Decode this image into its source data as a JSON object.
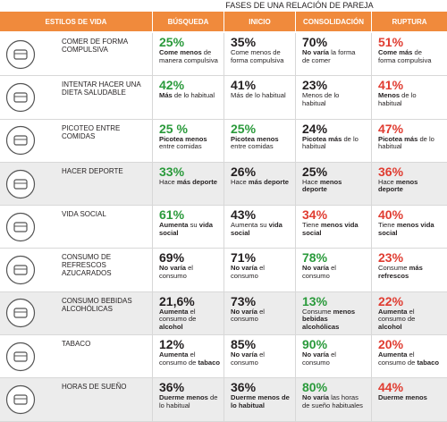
{
  "title": "FASES DE UNA RELACIÓN DE PAREJA",
  "table": {
    "header": [
      "ESTILOS DE VIDA",
      "BÚSQUEDA",
      "INICIO",
      "CONSOLIDACIÓN",
      "RUPTURA"
    ],
    "rows": [
      {
        "label": "COMER DE FORMA COMPULSIVA",
        "cells": [
          {
            "value": "25%",
            "color": "#2a9a3b",
            "note": [
              {
                "text": "Come menos",
                "bold": true
              },
              {
                "text": " de manera compulsiva"
              }
            ]
          },
          {
            "value": "35%",
            "color": "#231f20",
            "note": [
              {
                "text": "Come menos de forma compulsiva"
              }
            ]
          },
          {
            "value": "70%",
            "color": "#231f20",
            "note": [
              {
                "text": "No varía",
                "bold": true
              },
              {
                "text": " la forma de comer"
              }
            ]
          },
          {
            "value": "51%",
            "color": "#e03c31",
            "note": [
              {
                "text": "Come más",
                "bold": true
              },
              {
                "text": " de forma compulsiva"
              }
            ]
          }
        ]
      },
      {
        "label": "INTENTAR HACER UNA DIETA SALUDABLE",
        "cells": [
          {
            "value": "42%",
            "color": "#2a9a3b",
            "note": [
              {
                "text": "Más",
                "bold": true
              },
              {
                "text": " de lo habitual"
              }
            ]
          },
          {
            "value": "41%",
            "color": "#231f20",
            "note": [
              {
                "text": "Más de lo habitual"
              }
            ]
          },
          {
            "value": "23%",
            "color": "#231f20",
            "note": [
              {
                "text": "Menos de lo habitual"
              }
            ]
          },
          {
            "value": "41%",
            "color": "#e03c31",
            "note": [
              {
                "text": "Menos",
                "bold": true
              },
              {
                "text": " de lo habitual"
              }
            ]
          }
        ]
      },
      {
        "label": "PICOTEO ENTRE COMIDAS",
        "cells": [
          {
            "value": "25 %",
            "color": "#2a9a3b",
            "note": [
              {
                "text": "Picotea menos",
                "bold": true
              },
              {
                "text": " entre comidas"
              }
            ]
          },
          {
            "value": "25%",
            "color": "#2a9a3b",
            "note": [
              {
                "text": "Picotea menos",
                "bold": true
              },
              {
                "text": " entre comidas"
              }
            ]
          },
          {
            "value": "24%",
            "color": "#231f20",
            "note": [
              {
                "text": "Picotea más",
                "bold": true
              },
              {
                "text": " de lo habitual"
              }
            ]
          },
          {
            "value": "47%",
            "color": "#e03c31",
            "note": [
              {
                "text": "Picotea más",
                "bold": true
              },
              {
                "text": " de lo habitual"
              }
            ]
          }
        ]
      },
      {
        "label": "HACER DEPORTE",
        "cells": [
          {
            "value": "33%",
            "color": "#2a9a3b",
            "note": [
              {
                "text": "Hace "
              },
              {
                "text": "más deporte",
                "bold": true
              }
            ]
          },
          {
            "value": "26%",
            "color": "#231f20",
            "note": [
              {
                "text": "Hace "
              },
              {
                "text": "más deporte",
                "bold": true
              }
            ]
          },
          {
            "value": "25%",
            "color": "#231f20",
            "note": [
              {
                "text": "Hace "
              },
              {
                "text": "menos deporte",
                "bold": true
              }
            ]
          },
          {
            "value": "36%",
            "color": "#e03c31",
            "note": [
              {
                "text": "Hace "
              },
              {
                "text": "menos deporte",
                "bold": true
              }
            ]
          }
        ]
      },
      {
        "label": "VIDA SOCIAL",
        "cells": [
          {
            "value": "61%",
            "color": "#2a9a3b",
            "note": [
              {
                "text": "Aumenta",
                "bold": true
              },
              {
                "text": " su "
              },
              {
                "text": "vida social",
                "bold": true
              }
            ]
          },
          {
            "value": "43%",
            "color": "#231f20",
            "note": [
              {
                "text": "Aumenta su "
              },
              {
                "text": "vida social",
                "bold": true
              }
            ]
          },
          {
            "value": "34%",
            "color": "#e03c31",
            "note": [
              {
                "text": "Tiene "
              },
              {
                "text": "menos vida social",
                "bold": true
              }
            ]
          },
          {
            "value": "40%",
            "color": "#e03c31",
            "note": [
              {
                "text": "Tiene "
              },
              {
                "text": "menos vida social",
                "bold": true
              }
            ]
          }
        ]
      },
      {
        "label": "CONSUMO DE REFRESCOS AZUCARADOS",
        "cells": [
          {
            "value": "69%",
            "color": "#231f20",
            "note": [
              {
                "text": "No varía",
                "bold": true
              },
              {
                "text": " el consumo"
              }
            ]
          },
          {
            "value": "71%",
            "color": "#231f20",
            "note": [
              {
                "text": "No varía",
                "bold": true
              },
              {
                "text": " el consumo"
              }
            ]
          },
          {
            "value": "78%",
            "color": "#2a9a3b",
            "note": [
              {
                "text": "No varía",
                "bold": true
              },
              {
                "text": " el consumo"
              }
            ]
          },
          {
            "value": "23%",
            "color": "#e03c31",
            "note": [
              {
                "text": "Consume "
              },
              {
                "text": "más refrescos",
                "bold": true
              }
            ]
          }
        ]
      },
      {
        "label": "CONSUMO BEBIDAS ALCOHÓLICAS",
        "cells": [
          {
            "value": "21,6%",
            "color": "#231f20",
            "note": [
              {
                "text": "Aumenta",
                "bold": true
              },
              {
                "text": " el consumo de "
              },
              {
                "text": "alcohol",
                "bold": true
              }
            ]
          },
          {
            "value": "73%",
            "color": "#231f20",
            "note": [
              {
                "text": "No varía",
                "bold": true
              },
              {
                "text": " el consumo"
              }
            ]
          },
          {
            "value": "13%",
            "color": "#2a9a3b",
            "note": [
              {
                "text": "Consume "
              },
              {
                "text": "menos bebidas alcohólicas",
                "bold": true
              }
            ]
          },
          {
            "value": "22%",
            "color": "#e03c31",
            "note": [
              {
                "text": "Aumenta",
                "bold": true
              },
              {
                "text": " el consumo de "
              },
              {
                "text": "alcohol",
                "bold": true
              }
            ]
          }
        ]
      },
      {
        "label": "TABACO",
        "cells": [
          {
            "value": "12%",
            "color": "#231f20",
            "note": [
              {
                "text": "Aumenta",
                "bold": true
              },
              {
                "text": " el consumo de "
              },
              {
                "text": "tabaco",
                "bold": true
              }
            ]
          },
          {
            "value": "85%",
            "color": "#231f20",
            "note": [
              {
                "text": "No varía",
                "bold": true
              },
              {
                "text": " el consumo"
              }
            ]
          },
          {
            "value": "90%",
            "color": "#2a9a3b",
            "note": [
              {
                "text": "No varía",
                "bold": true
              },
              {
                "text": " el consumo"
              }
            ]
          },
          {
            "value": "20%",
            "color": "#e03c31",
            "note": [
              {
                "text": "Aumenta",
                "bold": true
              },
              {
                "text": " el consumo de "
              },
              {
                "text": "tabaco",
                "bold": true
              }
            ]
          }
        ]
      },
      {
        "label": "HORAS DE SUEÑO",
        "cells": [
          {
            "value": "36%",
            "color": "#231f20",
            "note": [
              {
                "text": "Duerme menos",
                "bold": true
              },
              {
                "text": " de lo habitual"
              }
            ]
          },
          {
            "value": "36%",
            "color": "#231f20",
            "note": [
              {
                "text": "Duerme menos de lo habitual",
                "bold": true
              }
            ]
          },
          {
            "value": "80%",
            "color": "#2a9a3b",
            "note": [
              {
                "text": "No varía",
                "bold": true
              },
              {
                "text": " las horas de sueño habituales"
              }
            ]
          },
          {
            "value": "44%",
            "color": "#e03c31",
            "note": [
              {
                "text": "Duerme menos",
                "bold": true
              }
            ]
          }
        ]
      }
    ]
  }
}
